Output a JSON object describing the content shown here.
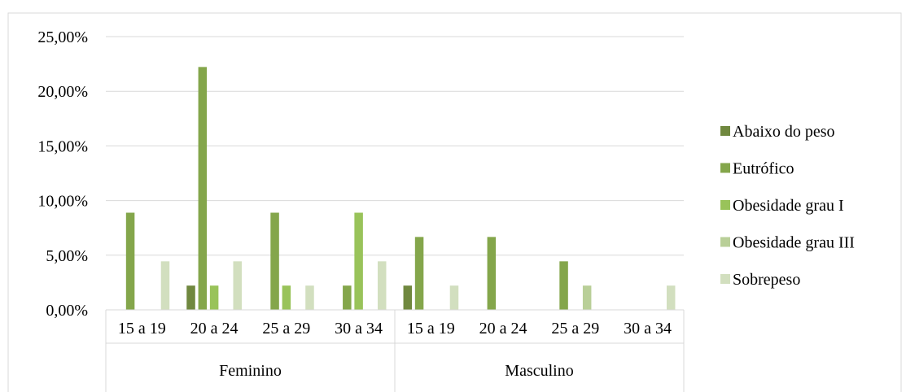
{
  "chart_data": {
    "type": "bar",
    "title": "",
    "xlabel": "",
    "ylabel": "",
    "groups": [
      {
        "name": "Feminino",
        "categories": [
          "15 a 19",
          "20 a 24",
          "25 a 29",
          "30 a 34"
        ]
      },
      {
        "name": "Masculino",
        "categories": [
          "15 a 19",
          "20 a 24",
          "25 a 29",
          "30 a 34"
        ]
      }
    ],
    "series": [
      {
        "name": "Abaixo do peso",
        "color": "#70883f",
        "values": [
          0,
          2.22,
          0,
          0,
          2.22,
          0,
          0,
          0
        ]
      },
      {
        "name": "Eutrófico",
        "color": "#84a64b",
        "values": [
          8.89,
          22.22,
          8.89,
          2.22,
          6.67,
          6.67,
          4.44,
          0
        ]
      },
      {
        "name": "Obesidade grau I",
        "color": "#99c35a",
        "values": [
          0,
          2.22,
          2.22,
          8.89,
          0,
          0,
          0,
          0
        ]
      },
      {
        "name": "Obesidade grau III",
        "color": "#b9cf98",
        "values": [
          0,
          0,
          0,
          0,
          0,
          0,
          2.22,
          0
        ]
      },
      {
        "name": "Sobrepeso",
        "color": "#d2dfbf",
        "values": [
          4.44,
          4.44,
          2.22,
          4.44,
          2.22,
          0,
          0,
          2.22
        ]
      }
    ],
    "y_ticks": [
      "0,00%",
      "5,00%",
      "10,00%",
      "15,00%",
      "20,00%",
      "25,00%"
    ],
    "ylim": [
      0,
      25
    ],
    "grid": true,
    "legend_position": "right"
  }
}
